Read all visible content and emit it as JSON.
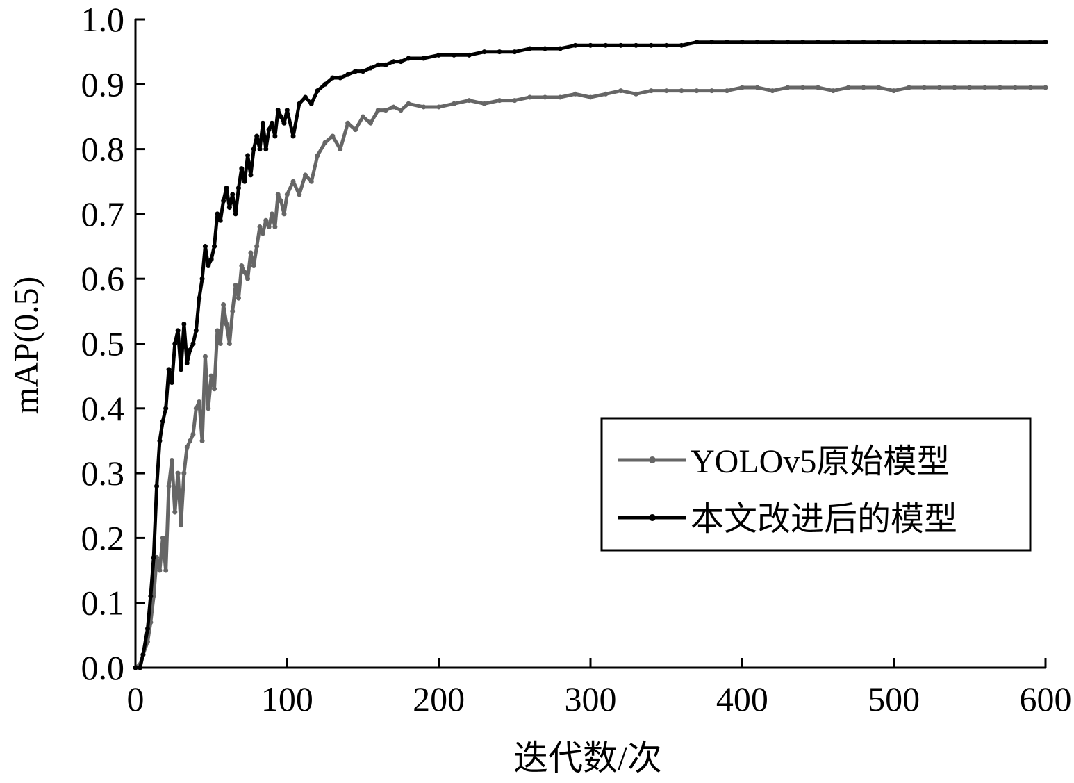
{
  "chart_data": {
    "type": "line",
    "xlabel": "迭代数/次",
    "ylabel": "mAP(0.5)",
    "xlim": [
      0,
      600
    ],
    "ylim": [
      0,
      1.0
    ],
    "x_ticks": [
      "0",
      "100",
      "200",
      "300",
      "400",
      "500",
      "600"
    ],
    "y_ticks": [
      "0.0",
      "0.1",
      "0.2",
      "0.3",
      "0.4",
      "0.5",
      "0.6",
      "0.7",
      "0.8",
      "0.9",
      "1.0"
    ],
    "grid": false,
    "legend_position": "right-middle",
    "series": [
      {
        "name": "YOLOv5原始模型",
        "color": "#666666",
        "x": [
          0,
          3,
          5,
          8,
          10,
          12,
          14,
          16,
          18,
          20,
          22,
          24,
          26,
          28,
          30,
          32,
          34,
          36,
          38,
          40,
          42,
          44,
          46,
          48,
          50,
          52,
          54,
          56,
          58,
          60,
          62,
          64,
          66,
          68,
          70,
          72,
          74,
          76,
          78,
          80,
          82,
          84,
          86,
          88,
          90,
          92,
          94,
          96,
          98,
          100,
          104,
          108,
          112,
          116,
          120,
          125,
          130,
          135,
          140,
          145,
          150,
          155,
          160,
          165,
          170,
          175,
          180,
          190,
          200,
          210,
          220,
          230,
          240,
          250,
          260,
          270,
          280,
          290,
          300,
          310,
          320,
          330,
          340,
          350,
          360,
          370,
          380,
          390,
          400,
          410,
          420,
          430,
          440,
          450,
          460,
          470,
          480,
          490,
          500,
          510,
          520,
          530,
          540,
          550,
          560,
          570,
          580,
          590,
          600
        ],
        "values": [
          0.0,
          0.005,
          0.02,
          0.04,
          0.07,
          0.11,
          0.17,
          0.15,
          0.2,
          0.15,
          0.28,
          0.32,
          0.24,
          0.3,
          0.22,
          0.3,
          0.34,
          0.35,
          0.36,
          0.4,
          0.41,
          0.35,
          0.48,
          0.4,
          0.45,
          0.43,
          0.52,
          0.5,
          0.56,
          0.53,
          0.5,
          0.55,
          0.59,
          0.57,
          0.62,
          0.61,
          0.6,
          0.64,
          0.62,
          0.65,
          0.68,
          0.67,
          0.69,
          0.68,
          0.7,
          0.68,
          0.73,
          0.72,
          0.7,
          0.73,
          0.75,
          0.73,
          0.76,
          0.75,
          0.79,
          0.81,
          0.82,
          0.8,
          0.84,
          0.83,
          0.85,
          0.84,
          0.86,
          0.86,
          0.865,
          0.86,
          0.87,
          0.865,
          0.865,
          0.87,
          0.875,
          0.87,
          0.875,
          0.875,
          0.88,
          0.88,
          0.88,
          0.885,
          0.88,
          0.885,
          0.89,
          0.885,
          0.89,
          0.89,
          0.89,
          0.89,
          0.89,
          0.89,
          0.895,
          0.895,
          0.89,
          0.895,
          0.895,
          0.895,
          0.89,
          0.895,
          0.895,
          0.895,
          0.89,
          0.895,
          0.895,
          0.895,
          0.895,
          0.895,
          0.895,
          0.895,
          0.895,
          0.895,
          0.895
        ]
      },
      {
        "name": "本文改进后的模型",
        "color": "#000000",
        "x": [
          0,
          3,
          5,
          8,
          10,
          12,
          14,
          16,
          18,
          20,
          22,
          24,
          26,
          28,
          30,
          32,
          34,
          36,
          38,
          40,
          42,
          44,
          46,
          48,
          50,
          52,
          54,
          56,
          58,
          60,
          62,
          64,
          66,
          68,
          70,
          72,
          74,
          76,
          78,
          80,
          82,
          84,
          86,
          88,
          90,
          92,
          94,
          96,
          98,
          100,
          104,
          108,
          112,
          116,
          120,
          125,
          130,
          135,
          140,
          145,
          150,
          155,
          160,
          165,
          170,
          175,
          180,
          190,
          200,
          210,
          220,
          230,
          240,
          250,
          260,
          270,
          280,
          290,
          300,
          310,
          320,
          330,
          340,
          350,
          360,
          370,
          380,
          390,
          400,
          410,
          420,
          430,
          440,
          450,
          460,
          470,
          480,
          490,
          500,
          510,
          520,
          530,
          540,
          550,
          560,
          570,
          580,
          590,
          600
        ],
        "values": [
          0.0,
          0.0,
          0.02,
          0.06,
          0.11,
          0.17,
          0.28,
          0.35,
          0.38,
          0.4,
          0.46,
          0.44,
          0.5,
          0.52,
          0.46,
          0.53,
          0.47,
          0.49,
          0.5,
          0.52,
          0.57,
          0.6,
          0.65,
          0.62,
          0.63,
          0.65,
          0.7,
          0.69,
          0.72,
          0.74,
          0.71,
          0.73,
          0.7,
          0.74,
          0.77,
          0.75,
          0.79,
          0.76,
          0.8,
          0.82,
          0.8,
          0.84,
          0.8,
          0.83,
          0.84,
          0.82,
          0.86,
          0.85,
          0.84,
          0.86,
          0.82,
          0.87,
          0.88,
          0.87,
          0.89,
          0.9,
          0.91,
          0.91,
          0.915,
          0.92,
          0.92,
          0.925,
          0.93,
          0.93,
          0.935,
          0.935,
          0.94,
          0.94,
          0.945,
          0.945,
          0.945,
          0.95,
          0.95,
          0.95,
          0.955,
          0.955,
          0.955,
          0.96,
          0.96,
          0.96,
          0.96,
          0.96,
          0.96,
          0.96,
          0.96,
          0.965,
          0.965,
          0.965,
          0.965,
          0.965,
          0.965,
          0.965,
          0.965,
          0.965,
          0.965,
          0.965,
          0.965,
          0.965,
          0.965,
          0.965,
          0.965,
          0.965,
          0.965,
          0.965,
          0.965,
          0.965,
          0.965,
          0.965,
          0.965
        ]
      }
    ]
  }
}
